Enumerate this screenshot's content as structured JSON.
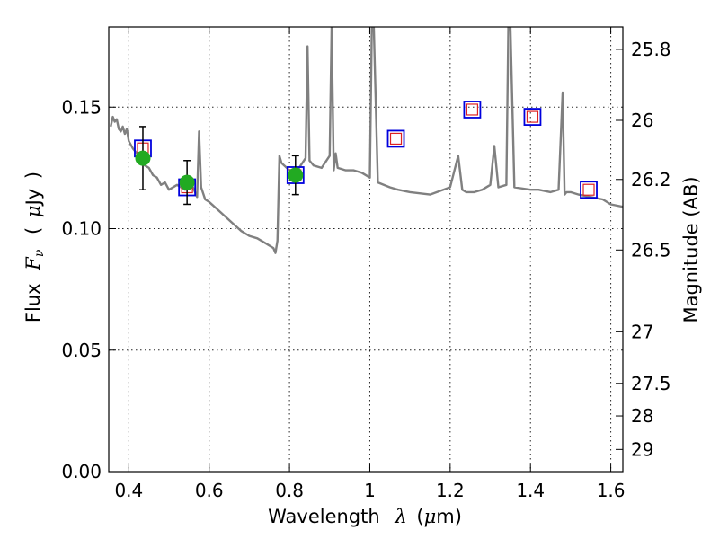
{
  "chart_data": {
    "type": "scatter",
    "xlabel": "Wavelength  λ (μm)",
    "ylabel": "Flux  F_ν  ( μJy )",
    "ylabel_parts": {
      "pre": "Flux",
      "var": "F",
      "sub": "ν",
      "open": "(",
      "mu": "μ",
      "unit": "Jy",
      "close": ")"
    },
    "xlabel_parts": {
      "pre": "Wavelength",
      "var": "λ",
      "open": "(",
      "mu": "μ",
      "unit": "m)"
    },
    "y2label": "Magnitude (AB)",
    "xlim": [
      0.35,
      1.63
    ],
    "ylim": [
      0.0,
      0.183
    ],
    "grid": true,
    "x_ticks": [
      {
        "value": 0.4,
        "label": "0.4"
      },
      {
        "value": 0.6,
        "label": "0.6"
      },
      {
        "value": 0.8,
        "label": "0.8"
      },
      {
        "value": 1.0,
        "label": "1"
      },
      {
        "value": 1.2,
        "label": "1.2"
      },
      {
        "value": 1.4,
        "label": "1.4"
      },
      {
        "value": 1.6,
        "label": "1.6"
      }
    ],
    "y_ticks": [
      {
        "value": 0.0,
        "label": "0.00"
      },
      {
        "value": 0.05,
        "label": "0.05"
      },
      {
        "value": 0.1,
        "label": "0.10"
      },
      {
        "value": 0.15,
        "label": "0.15"
      }
    ],
    "y2_ticks": [
      {
        "value": 25.8,
        "label": "25.8"
      },
      {
        "value": 26.0,
        "label": "26"
      },
      {
        "value": 26.2,
        "label": "26.2"
      },
      {
        "value": 26.5,
        "label": "26.5"
      },
      {
        "value": 27.0,
        "label": "27"
      },
      {
        "value": 27.5,
        "label": "27.5"
      },
      {
        "value": 28.0,
        "label": "28"
      },
      {
        "value": 29.0,
        "label": "29"
      }
    ],
    "colors": {
      "model": "#808080",
      "observed": "#22aa22",
      "model_band_outer": "#0000dd",
      "model_band_inner": "#dd2222",
      "errorbar": "#000000"
    },
    "series": [
      {
        "kind": "line",
        "x": [
          0.355,
          0.36,
          0.365,
          0.37,
          0.375,
          0.38,
          0.385,
          0.39,
          0.395,
          0.4,
          0.41,
          0.42,
          0.43,
          0.44,
          0.45,
          0.46,
          0.47,
          0.48,
          0.49,
          0.5,
          0.52,
          0.54,
          0.56,
          0.57,
          0.575,
          0.58,
          0.59,
          0.6,
          0.62,
          0.64,
          0.66,
          0.68,
          0.7,
          0.72,
          0.74,
          0.76,
          0.765,
          0.77,
          0.775,
          0.78,
          0.8,
          0.82,
          0.84,
          0.845,
          0.85,
          0.855,
          0.86,
          0.88,
          0.9,
          0.905,
          0.91,
          0.915,
          0.92,
          0.94,
          0.96,
          0.98,
          1.0,
          1.005,
          1.01,
          1.02,
          1.05,
          1.07,
          1.1,
          1.15,
          1.2,
          1.22,
          1.23,
          1.24,
          1.26,
          1.28,
          1.3,
          1.31,
          1.32,
          1.34,
          1.345,
          1.35,
          1.36,
          1.4,
          1.42,
          1.45,
          1.47,
          1.48,
          1.485,
          1.49,
          1.5,
          1.52,
          1.55,
          1.58,
          1.6,
          1.63
        ],
        "y": [
          0.142,
          0.146,
          0.144,
          0.145,
          0.141,
          0.14,
          0.142,
          0.139,
          0.141,
          0.136,
          0.133,
          0.131,
          0.129,
          0.126,
          0.125,
          0.122,
          0.121,
          0.118,
          0.119,
          0.116,
          0.118,
          0.116,
          0.117,
          0.113,
          0.14,
          0.117,
          0.112,
          0.111,
          0.108,
          0.105,
          0.102,
          0.099,
          0.097,
          0.096,
          0.094,
          0.092,
          0.09,
          0.095,
          0.13,
          0.127,
          0.124,
          0.124,
          0.129,
          0.175,
          0.128,
          0.127,
          0.126,
          0.125,
          0.13,
          0.183,
          0.124,
          0.131,
          0.125,
          0.124,
          0.124,
          0.123,
          0.121,
          0.183,
          0.183,
          0.119,
          0.117,
          0.116,
          0.115,
          0.114,
          0.117,
          0.13,
          0.116,
          0.115,
          0.115,
          0.116,
          0.118,
          0.134,
          0.117,
          0.118,
          0.183,
          0.183,
          0.117,
          0.116,
          0.116,
          0.115,
          0.116,
          0.156,
          0.114,
          0.115,
          0.115,
          0.114,
          0.113,
          0.112,
          0.11,
          0.109
        ]
      },
      {
        "kind": "model_band_squares",
        "x": [
          0.435,
          0.545,
          0.815,
          1.065,
          1.255,
          1.405,
          1.545
        ],
        "y": [
          0.133,
          0.117,
          0.122,
          0.137,
          0.149,
          0.146,
          0.116
        ]
      },
      {
        "kind": "observed_points",
        "x": [
          0.435,
          0.545,
          0.815
        ],
        "y": [
          0.129,
          0.119,
          0.122
        ],
        "yerr": [
          0.013,
          0.009,
          0.008
        ]
      }
    ]
  }
}
